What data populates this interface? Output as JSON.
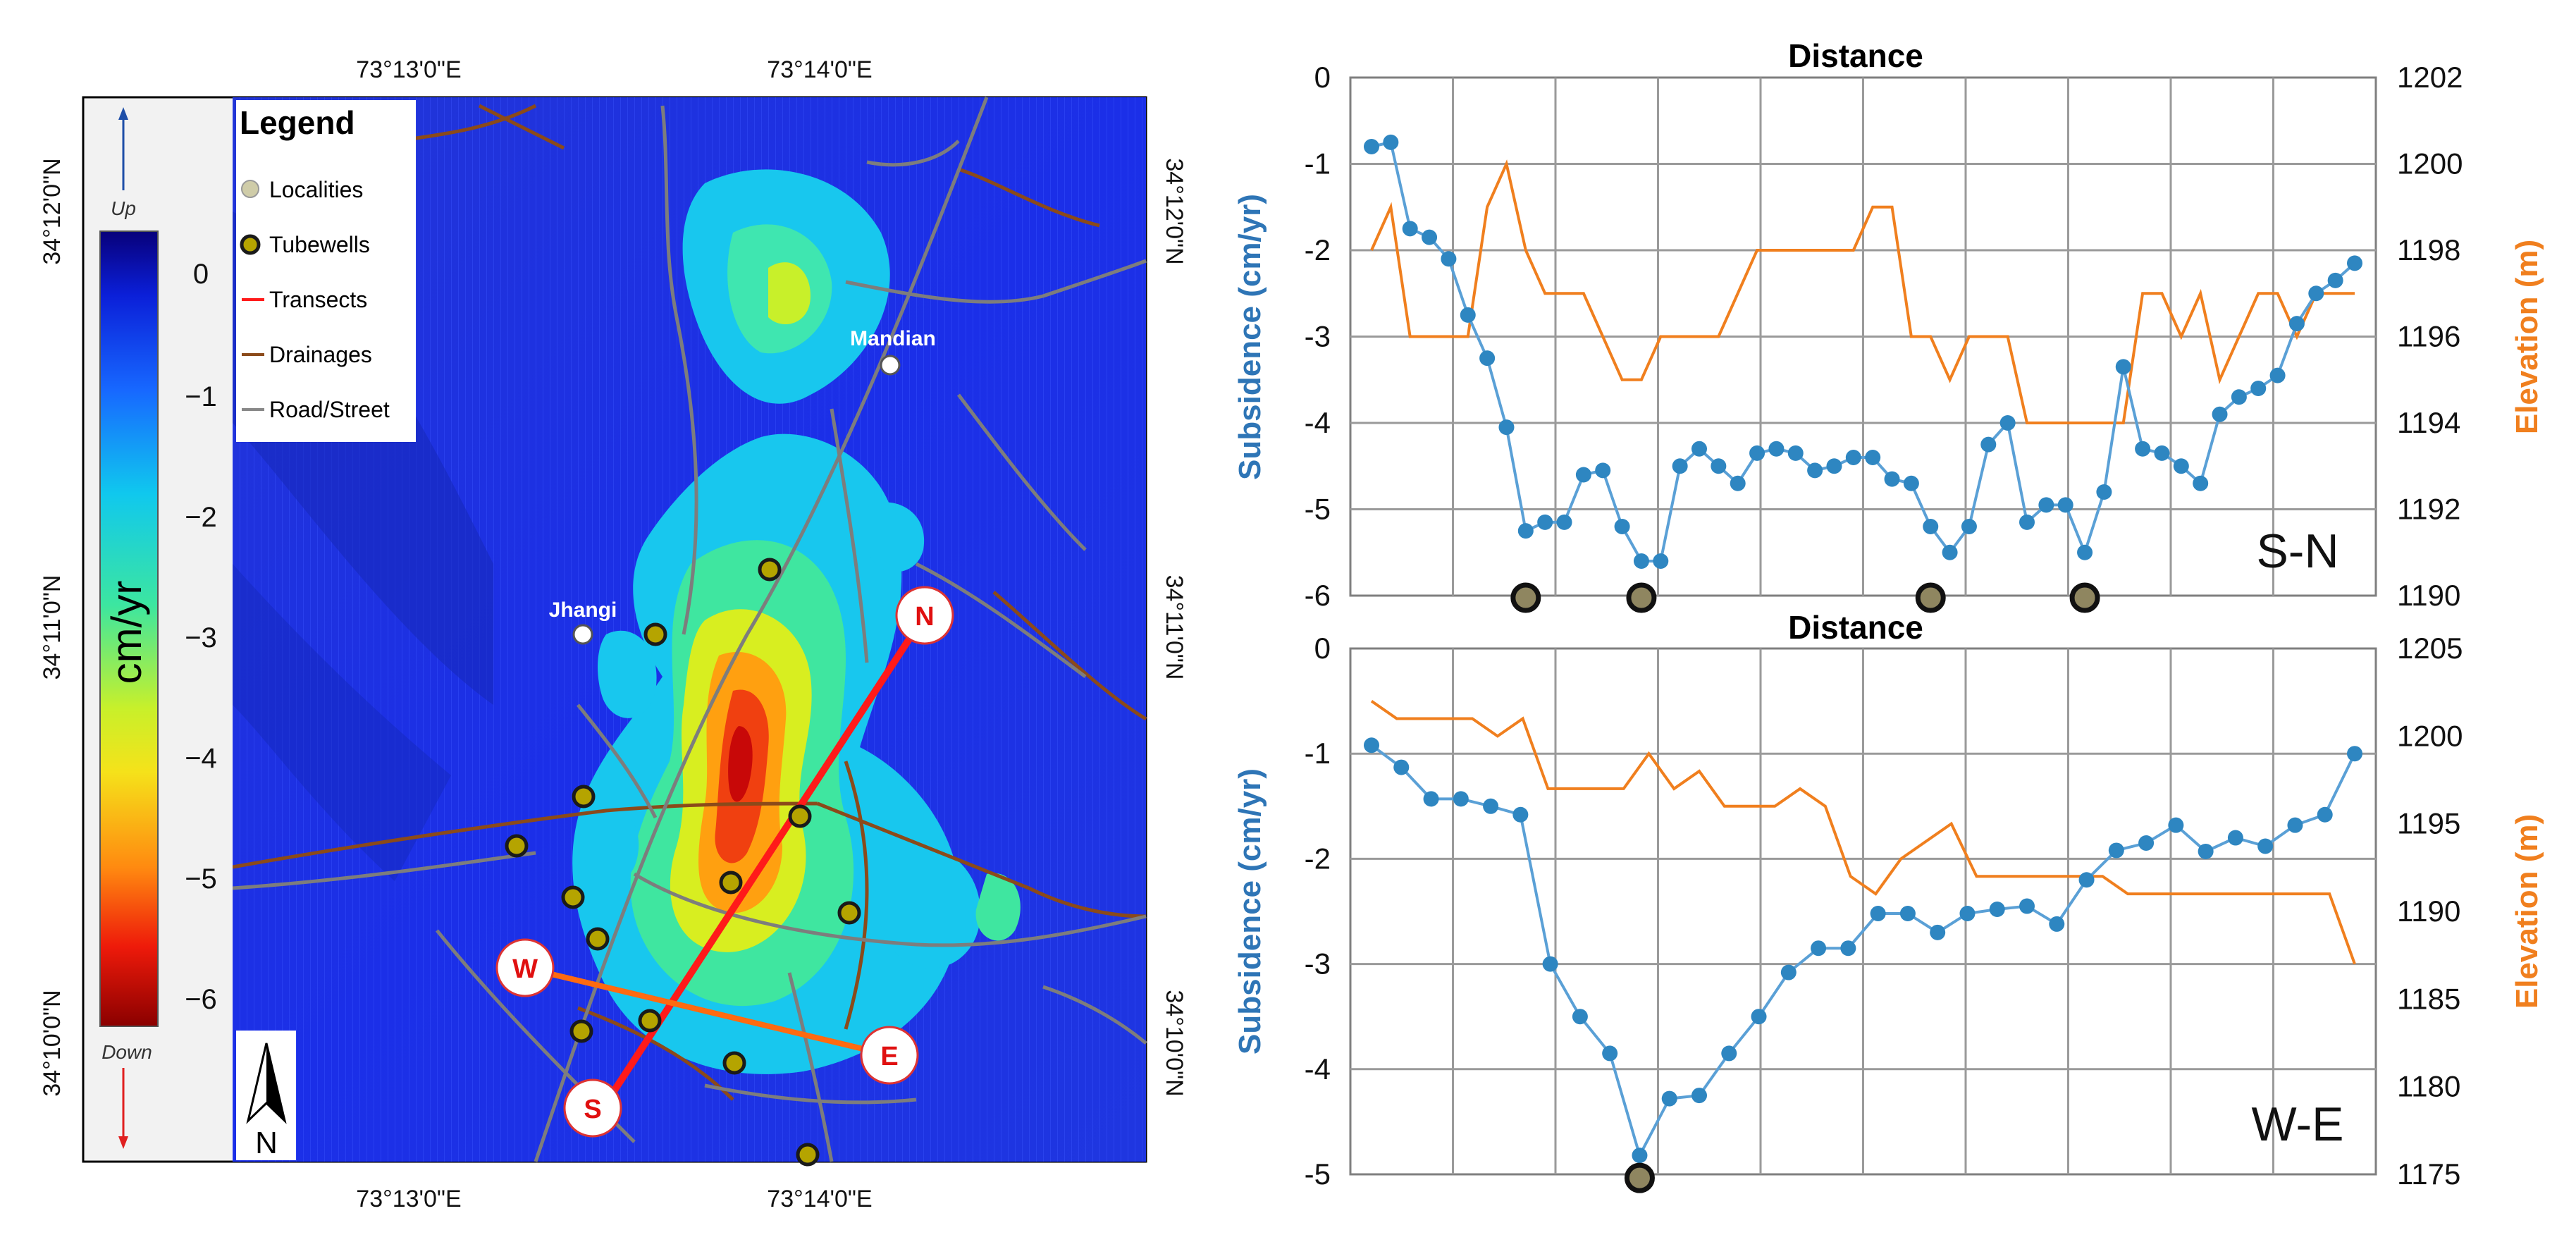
{
  "map": {
    "top_ticks": [
      "73°13'0\"E",
      "73°14'0\"E"
    ],
    "bottom_ticks": [
      "73°13'0\"E",
      "73°14'0\"E"
    ],
    "left_ticks": [
      "34°12'0\"N",
      "34°11'0\"N",
      "34°10'0\"N"
    ],
    "right_ticks": [
      "34°12'0\"N",
      "34°11'0\"N",
      "34°10'0\"N"
    ],
    "colorbar": {
      "unit": "cm/yr",
      "up_label": "Up",
      "down_label": "Down",
      "ticks": [
        "0",
        "−1",
        "−2",
        "−3",
        "−4",
        "−5",
        "−6"
      ]
    },
    "legend": {
      "title": "Legend",
      "items": [
        "Localities",
        "Tubewells",
        "Transects",
        "Drainages",
        "Road/Street"
      ]
    },
    "places": [
      "Mandian",
      "Jhangi"
    ],
    "transect_endpoints": [
      "N",
      "S",
      "W",
      "E"
    ],
    "north_arrow": "N",
    "colors": {
      "background": "#1a2ee6",
      "transect": "#ff1a1a",
      "road": "#888888",
      "drainage": "#8b4a1a",
      "tubewell": "#c8b400"
    }
  },
  "chart_data": [
    {
      "type": "line",
      "title": "Distance",
      "transect": "S-N",
      "xlabel": "Distance",
      "ylabel": "Subsidence (cm/yr)",
      "y2label": "Elevation (m)",
      "ylim": [
        -6,
        0
      ],
      "y2lim": [
        1190,
        1202
      ],
      "yticks": [
        "0",
        "-1",
        "-2",
        "-3",
        "-4",
        "-5",
        "-6"
      ],
      "y2ticks": [
        "1202",
        "1200",
        "1198",
        "1196",
        "1194",
        "1192",
        "1190"
      ],
      "series": [
        {
          "name": "Subsidence",
          "axis": "left",
          "color": "#2e86c1",
          "values": [
            -0.8,
            -0.75,
            -1.75,
            -1.85,
            -2.1,
            -2.75,
            -3.25,
            -4.05,
            -5.25,
            -5.15,
            -5.15,
            -4.6,
            -4.55,
            -5.2,
            -5.6,
            -5.6,
            -4.5,
            -4.3,
            -4.5,
            -4.7,
            -4.35,
            -4.3,
            -4.35,
            -4.55,
            -4.5,
            -4.4,
            -4.4,
            -4.65,
            -4.7,
            -5.2,
            -5.5,
            -5.2,
            -4.25,
            -4.0,
            -5.15,
            -4.95,
            -4.95,
            -5.5,
            -4.8,
            -3.35,
            -4.3,
            -4.35,
            -4.5,
            -4.7,
            -3.9,
            -3.7,
            -3.6,
            -3.45,
            -2.85,
            -2.5,
            -2.35,
            -2.15
          ]
        },
        {
          "name": "Elevation",
          "axis": "right",
          "color": "#f07f1e",
          "values": [
            1198,
            1199,
            1196,
            1196,
            1196,
            1196,
            1199,
            1200,
            1198,
            1197,
            1197,
            1197,
            1196,
            1195,
            1195,
            1196,
            1196,
            1196,
            1196,
            1197,
            1198,
            1198,
            1198,
            1198,
            1198,
            1198,
            1199,
            1199,
            1196,
            1196,
            1195,
            1196,
            1196,
            1196,
            1194,
            1194,
            1194,
            1194,
            1194,
            1194,
            1197,
            1197,
            1196,
            1197,
            1195,
            1196,
            1197,
            1197,
            1196,
            1197,
            1197,
            1197
          ]
        }
      ],
      "tubewell_markers_index": [
        8,
        14,
        29,
        37
      ],
      "label": "S-N"
    },
    {
      "type": "line",
      "title": "Distance",
      "transect": "W-E",
      "xlabel": "Distance",
      "ylabel": "Subsidence (cm/yr)",
      "y2label": "Elevation (m)",
      "ylim": [
        -5,
        0
      ],
      "y2lim": [
        1175,
        1205
      ],
      "yticks": [
        "0",
        "-1",
        "-2",
        "-3",
        "-4",
        "-5"
      ],
      "y2ticks": [
        "1205",
        "1200",
        "1195",
        "1190",
        "1185",
        "1180",
        "1175"
      ],
      "series": [
        {
          "name": "Subsidence",
          "axis": "left",
          "color": "#2e86c1",
          "values": [
            -0.92,
            -1.13,
            -1.43,
            -1.43,
            -1.5,
            -1.58,
            -3.0,
            -3.5,
            -3.85,
            -4.82,
            -4.28,
            -4.25,
            -3.85,
            -3.5,
            -3.08,
            -2.85,
            -2.85,
            -2.52,
            -2.52,
            -2.7,
            -2.52,
            -2.48,
            -2.45,
            -2.62,
            -2.2,
            -1.92,
            -1.85,
            -1.68,
            -1.93,
            -1.8,
            -1.88,
            -1.68,
            -1.58,
            -1.0
          ]
        },
        {
          "name": "Elevation",
          "axis": "right",
          "color": "#f07f1e",
          "values": [
            1202,
            1201,
            1201,
            1201,
            1201,
            1200,
            1201,
            1197,
            1197,
            1197,
            1197,
            1199,
            1197,
            1198,
            1196,
            1196,
            1196,
            1197,
            1196,
            1192,
            1191,
            1193,
            1194,
            1195,
            1192,
            1192,
            1192,
            1192,
            1192,
            1192,
            1191,
            1191,
            1191,
            1191,
            1191,
            1191,
            1191,
            1191,
            1191,
            1187
          ]
        }
      ],
      "tubewell_markers_index": [
        9
      ],
      "label": "W-E"
    }
  ]
}
